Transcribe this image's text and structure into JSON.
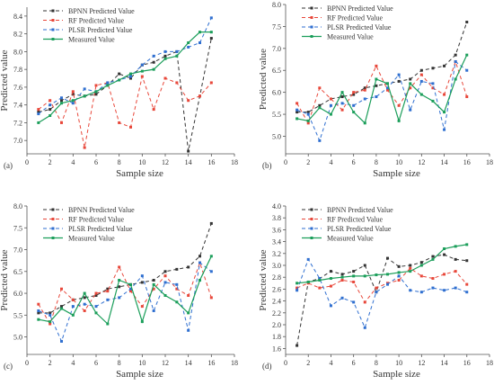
{
  "series_styles": [
    {
      "name": "BPNN Predicted Value",
      "color": "#333333",
      "dash": "4,3",
      "marker": "square",
      "width": 1.0
    },
    {
      "name": "RF Predicted Value",
      "color": "#e8473a",
      "dash": "4,3",
      "marker": "square",
      "width": 1.0
    },
    {
      "name": "PLSR Predicted Value",
      "color": "#2f6fd0",
      "dash": "4,3",
      "marker": "square",
      "width": 1.0
    },
    {
      "name": "Measured Value",
      "color": "#1b9e5a",
      "dash": "",
      "marker": "square",
      "width": 1.2
    }
  ],
  "chart_data": [
    {
      "panel": "(a)",
      "type": "line",
      "xlabel": "Sample size",
      "ylabel": "Predicted value",
      "xlim": [
        0,
        18
      ],
      "ylim": [
        6.85,
        8.5
      ],
      "xticks": [
        0,
        2,
        4,
        6,
        8,
        10,
        12,
        14,
        16,
        18
      ],
      "yticks": [
        7.0,
        7.2,
        7.4,
        7.6,
        7.8,
        8.0,
        8.2,
        8.4
      ],
      "ytick_decimals": 1,
      "legend_position": "top-left",
      "x": [
        1,
        2,
        3,
        4,
        5,
        6,
        7,
        8,
        9,
        10,
        11,
        12,
        13,
        14,
        15,
        16
      ],
      "series": [
        {
          "name": "BPNN Predicted Value",
          "values": [
            7.32,
            7.35,
            7.45,
            7.52,
            7.5,
            7.52,
            7.62,
            7.75,
            7.7,
            7.85,
            7.88,
            7.95,
            8.0,
            6.88,
            7.5,
            8.15
          ]
        },
        {
          "name": "RF Predicted Value",
          "values": [
            7.35,
            7.45,
            7.2,
            7.55,
            6.92,
            7.62,
            7.65,
            7.2,
            7.15,
            7.72,
            7.35,
            7.7,
            7.65,
            7.45,
            7.5,
            7.65
          ]
        },
        {
          "name": "PLSR Predicted Value",
          "values": [
            7.3,
            7.4,
            7.48,
            7.42,
            7.58,
            7.55,
            7.65,
            7.68,
            7.72,
            7.85,
            7.95,
            8.0,
            8.0,
            8.05,
            8.1,
            8.38
          ]
        },
        {
          "name": "Measured Value",
          "values": [
            7.2,
            7.28,
            7.42,
            7.45,
            7.5,
            7.55,
            7.62,
            7.68,
            7.75,
            7.78,
            7.8,
            7.92,
            7.95,
            8.1,
            8.22,
            8.22
          ]
        }
      ]
    },
    {
      "panel": "(b)",
      "type": "line",
      "xlabel": "Sample size",
      "ylabel": "Predicted value",
      "xlim": [
        0,
        18
      ],
      "ylim": [
        4.6,
        8.0
      ],
      "xticks": [
        0,
        2,
        4,
        6,
        8,
        10,
        12,
        14,
        16,
        18
      ],
      "yticks": [
        5.0,
        5.5,
        6.0,
        6.5,
        7.0,
        7.5,
        8.0
      ],
      "ytick_decimals": 1,
      "legend_position": "top-left",
      "x": [
        1,
        2,
        3,
        4,
        5,
        6,
        7,
        8,
        9,
        10,
        11,
        12,
        13,
        14,
        15,
        16
      ],
      "series": [
        {
          "name": "BPNN Predicted Value",
          "values": [
            5.55,
            5.55,
            5.7,
            5.85,
            5.9,
            5.95,
            6.1,
            6.15,
            6.2,
            6.25,
            6.3,
            6.5,
            6.55,
            6.6,
            6.85,
            7.6
          ]
        },
        {
          "name": "RF Predicted Value",
          "values": [
            5.75,
            5.3,
            6.1,
            5.85,
            5.6,
            6.0,
            6.05,
            6.6,
            6.05,
            5.7,
            6.1,
            6.4,
            6.1,
            5.95,
            6.7,
            5.9
          ]
        },
        {
          "name": "PLSR Predicted Value",
          "values": [
            5.6,
            5.5,
            4.9,
            5.7,
            5.75,
            5.7,
            5.85,
            5.9,
            6.1,
            6.4,
            5.6,
            6.25,
            6.2,
            5.15,
            6.7,
            6.5
          ]
        },
        {
          "name": "Measured Value",
          "values": [
            5.4,
            5.35,
            5.65,
            5.5,
            6.0,
            5.55,
            5.3,
            6.3,
            6.2,
            5.35,
            6.2,
            5.95,
            5.8,
            5.55,
            6.3,
            6.85
          ]
        }
      ]
    },
    {
      "panel": "(c)",
      "type": "line",
      "xlabel": "Sample size",
      "ylabel": "Predicted value",
      "xlim": [
        0,
        18
      ],
      "ylim": [
        4.6,
        8.0
      ],
      "xticks": [
        0,
        2,
        4,
        6,
        8,
        10,
        12,
        14,
        16,
        18
      ],
      "yticks": [
        5.0,
        5.5,
        6.0,
        6.5,
        7.0,
        7.5,
        8.0
      ],
      "ytick_decimals": 1,
      "legend_position": "top-left",
      "x": [
        1,
        2,
        3,
        4,
        5,
        6,
        7,
        8,
        9,
        10,
        11,
        12,
        13,
        14,
        15,
        16
      ],
      "series": [
        {
          "name": "BPNN Predicted Value",
          "values": [
            5.55,
            5.55,
            5.7,
            5.85,
            5.9,
            5.95,
            6.1,
            6.15,
            6.2,
            6.25,
            6.3,
            6.5,
            6.55,
            6.6,
            6.85,
            7.6
          ]
        },
        {
          "name": "RF Predicted Value",
          "values": [
            5.75,
            5.3,
            6.1,
            5.85,
            5.6,
            6.0,
            6.05,
            6.6,
            6.05,
            5.7,
            6.1,
            6.4,
            6.1,
            5.95,
            6.7,
            5.9
          ]
        },
        {
          "name": "PLSR Predicted Value",
          "values": [
            5.6,
            5.5,
            4.9,
            5.7,
            5.75,
            5.7,
            5.85,
            5.9,
            6.1,
            6.4,
            5.6,
            6.25,
            6.2,
            5.15,
            6.7,
            6.5
          ]
        },
        {
          "name": "Measured Value",
          "values": [
            5.4,
            5.35,
            5.65,
            5.5,
            6.0,
            5.55,
            5.3,
            6.3,
            6.2,
            5.35,
            6.2,
            5.95,
            5.8,
            5.55,
            6.3,
            6.85
          ]
        }
      ]
    },
    {
      "panel": "(d)",
      "type": "line",
      "xlabel": "Sample size",
      "ylabel": "Predicted value",
      "xlim": [
        0,
        18
      ],
      "ylim": [
        1.5,
        4.0
      ],
      "xticks": [
        0,
        2,
        4,
        6,
        8,
        10,
        12,
        14,
        16,
        18
      ],
      "yticks": [
        1.6,
        1.8,
        2.0,
        2.2,
        2.4,
        2.6,
        2.8,
        3.0,
        3.2,
        3.4,
        3.6,
        3.8,
        4.0
      ],
      "ytick_decimals": 1,
      "legend_position": "top-left",
      "x": [
        1,
        2,
        3,
        4,
        5,
        6,
        7,
        8,
        9,
        10,
        11,
        12,
        13,
        14,
        15,
        16
      ],
      "series": [
        {
          "name": "BPNN Predicted Value",
          "values": [
            1.65,
            2.72,
            2.78,
            2.9,
            2.85,
            2.9,
            3.0,
            2.55,
            3.12,
            2.98,
            3.0,
            3.05,
            3.15,
            3.18,
            3.1,
            3.08
          ]
        },
        {
          "name": "RF Predicted Value",
          "values": [
            2.62,
            2.7,
            2.62,
            2.65,
            2.75,
            2.72,
            2.38,
            2.62,
            2.7,
            2.75,
            2.95,
            2.82,
            2.78,
            2.85,
            2.9,
            2.68
          ]
        },
        {
          "name": "PLSR Predicted Value",
          "values": [
            2.58,
            3.1,
            2.78,
            2.32,
            2.45,
            2.38,
            1.95,
            2.55,
            2.68,
            2.82,
            2.58,
            2.55,
            2.62,
            2.58,
            2.62,
            2.55
          ]
        },
        {
          "name": "Measured Value",
          "values": [
            2.7,
            2.72,
            2.75,
            2.78,
            2.8,
            2.82,
            2.82,
            2.84,
            2.85,
            2.88,
            2.9,
            3.0,
            3.1,
            3.28,
            3.32,
            3.35
          ]
        }
      ]
    }
  ]
}
